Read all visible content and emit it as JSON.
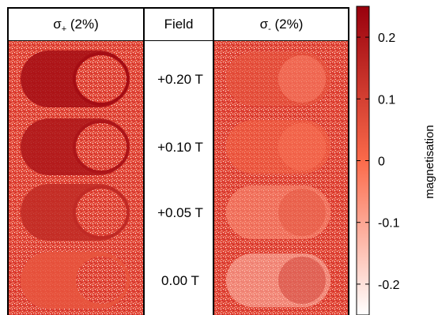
{
  "figure": {
    "headers": {
      "left": {
        "symbol": "σ",
        "subscript": "+",
        "suffix": " (2%)"
      },
      "middle": "Field",
      "right": {
        "symbol": "σ",
        "subscript": "-",
        "suffix": " (2%)"
      }
    },
    "rows": [
      {
        "field": "+0.20 T",
        "left_contrast": 0.22,
        "right_contrast": 0.05
      },
      {
        "field": "+0.10 T",
        "left_contrast": 0.2,
        "right_contrast": 0.02
      },
      {
        "field": "+0.05 T",
        "left_contrast": 0.15,
        "right_contrast": -0.06
      },
      {
        "field": "0.00 T",
        "left_contrast": 0.05,
        "right_contrast": -0.12
      }
    ],
    "colorbar": {
      "label": "magnetisation",
      "range": [
        -0.25,
        0.25
      ],
      "ticks": [
        {
          "value": 0.2,
          "label": "0.2"
        },
        {
          "value": 0.1,
          "label": "0.1"
        },
        {
          "value": 0,
          "label": "0"
        },
        {
          "value": -0.1,
          "label": "-0.1"
        },
        {
          "value": -0.2,
          "label": "-0.2"
        }
      ],
      "colors": {
        "high": "#99000d",
        "mid": "#fb6a4a",
        "low": "#ffffff"
      }
    },
    "colors": {
      "background_pixels": "#e34a33",
      "frame": "#000000"
    }
  }
}
